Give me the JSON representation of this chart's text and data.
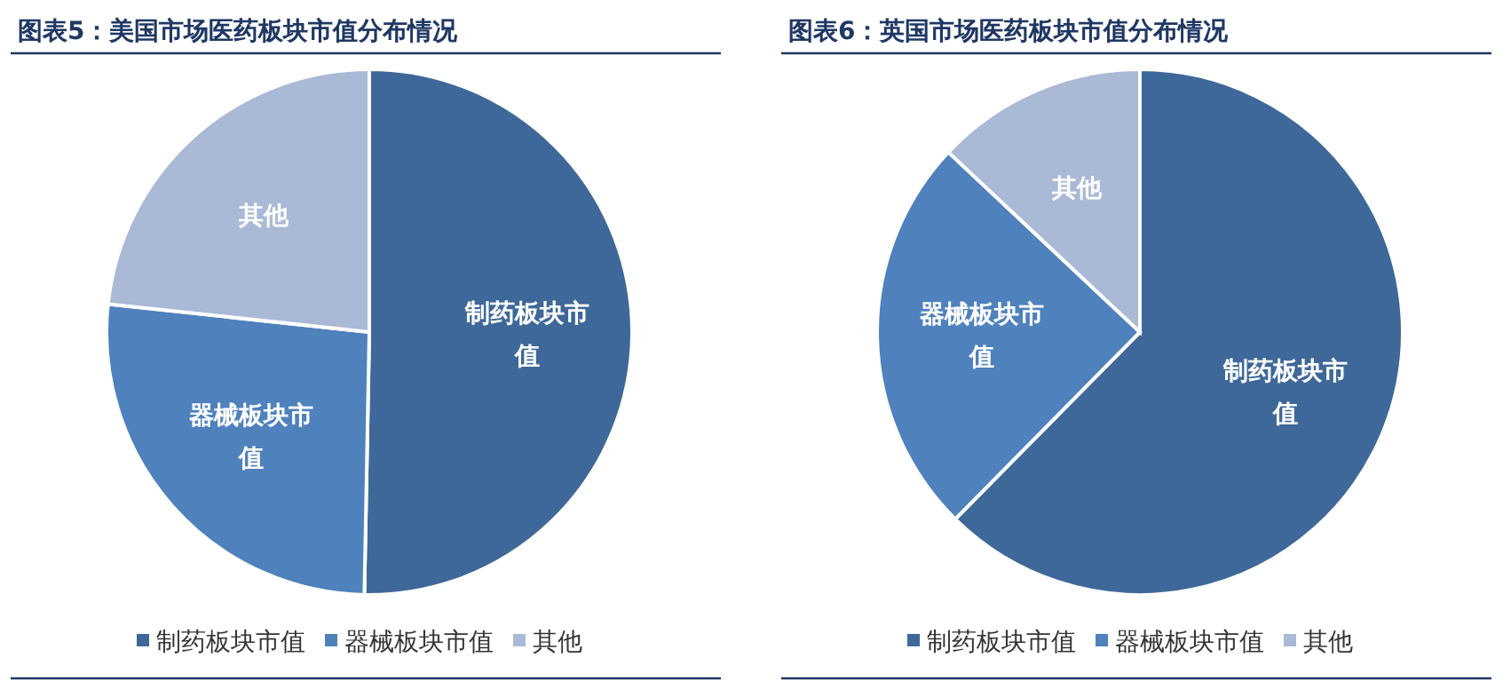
{
  "chart_data": [
    {
      "type": "pie",
      "title": "图表5：美国市场医药板块市值分布情况",
      "categories": [
        "制药板块市值",
        "器械板块市值",
        "其他"
      ],
      "values": [
        50.3,
        26.4,
        23.3
      ],
      "colors": [
        "#3e6899",
        "#4f81bd",
        "#a9b9d6"
      ],
      "legend": "bottom"
    },
    {
      "type": "pie",
      "title": "图表6：英国市场医药板块市值分布情况",
      "categories": [
        "制药板块市值",
        "器械板块市值",
        "其他"
      ],
      "values": [
        62.4,
        24.6,
        13.0
      ],
      "colors": [
        "#3e6899",
        "#4f81bd",
        "#a9b9d6"
      ],
      "legend": "bottom"
    }
  ]
}
